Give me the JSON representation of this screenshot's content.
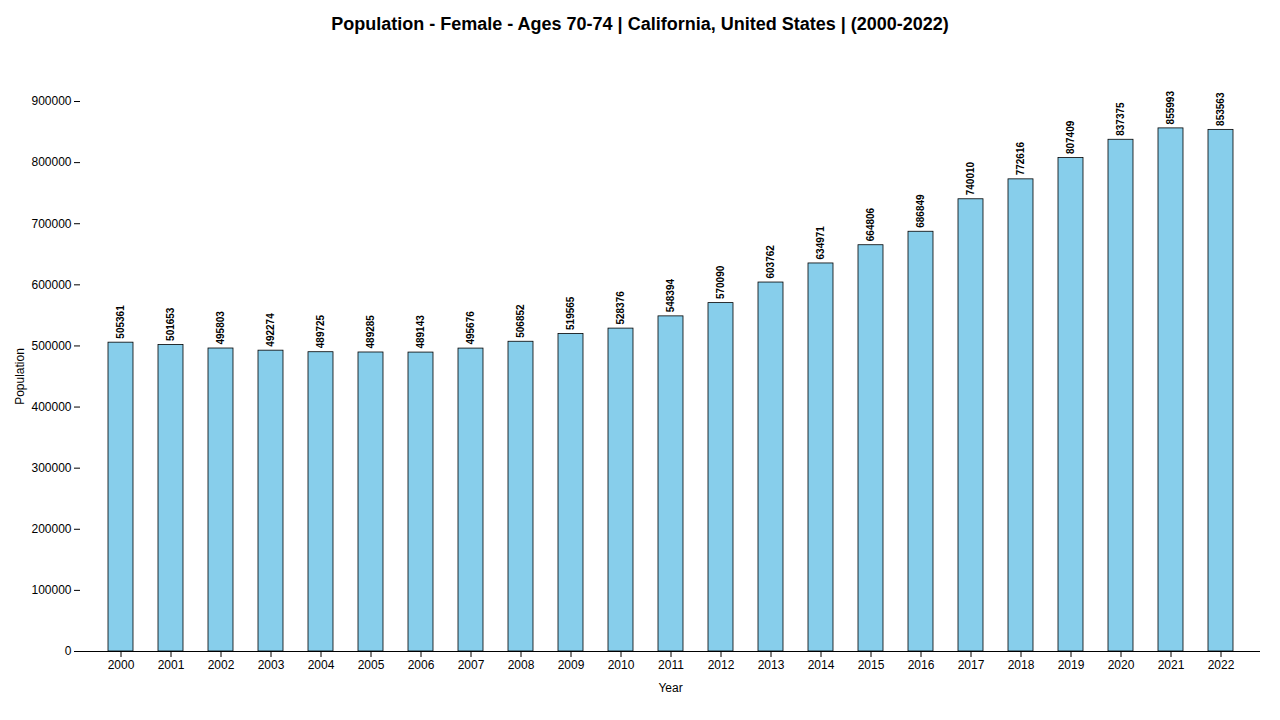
{
  "chart_data": {
    "type": "bar",
    "title": "Population - Female - Ages 70-74 | California, United States |  (2000-2022)",
    "xlabel": "Year",
    "ylabel": "Population",
    "categories": [
      "2000",
      "2001",
      "2002",
      "2003",
      "2004",
      "2005",
      "2006",
      "2007",
      "2008",
      "2009",
      "2010",
      "2011",
      "2012",
      "2013",
      "2014",
      "2015",
      "2016",
      "2017",
      "2018",
      "2019",
      "2020",
      "2021",
      "2022"
    ],
    "values": [
      505361,
      501653,
      495803,
      492274,
      489725,
      489285,
      489143,
      495676,
      506852,
      519565,
      528376,
      548394,
      570090,
      603762,
      634971,
      664806,
      686849,
      740010,
      772616,
      807409,
      837375,
      855993,
      853563
    ],
    "color": "#87CEEB",
    "ylim": [
      0,
      900000
    ],
    "yticks": [
      0,
      100000,
      200000,
      300000,
      400000,
      500000,
      600000,
      700000,
      800000,
      900000
    ],
    "grid": false,
    "data_labels": true
  }
}
